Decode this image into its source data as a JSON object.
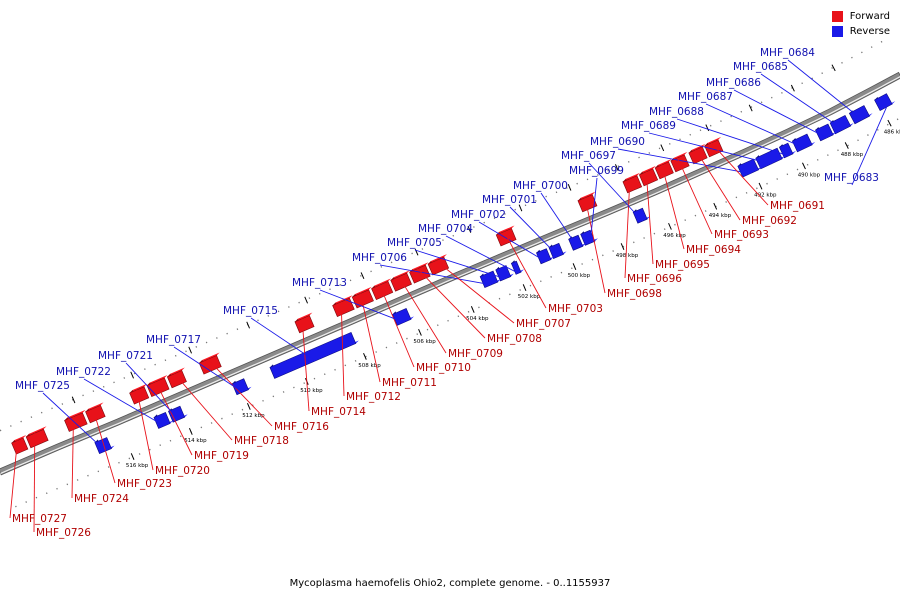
{
  "caption": "Mycoplasma haemofelis Ohio2, complete genome. - 0..1155937",
  "legend": {
    "forward_label": "Forward",
    "reverse_label": "Reverse",
    "forward_color": "#e8121a",
    "reverse_color": "#1a1ae8"
  },
  "ruler": {
    "unit": "kbp",
    "ticks": [
      {
        "pos": 486,
        "label": "486 kbp"
      },
      {
        "pos": 488,
        "label": "488 kbp"
      },
      {
        "pos": 490,
        "label": "490 kbp"
      },
      {
        "pos": 492,
        "label": "492 kbp"
      },
      {
        "pos": 494,
        "label": "494 kbp"
      },
      {
        "pos": 496,
        "label": "496 kbp"
      },
      {
        "pos": 498,
        "label": "498 kbp"
      },
      {
        "pos": 500,
        "label": "500 kbp"
      },
      {
        "pos": 502,
        "label": "502 kbp"
      },
      {
        "pos": 504,
        "label": "504 kbp"
      },
      {
        "pos": 506,
        "label": "506 kbp"
      },
      {
        "pos": 508,
        "label": "508 kbp"
      },
      {
        "pos": 510,
        "label": "510 kbp"
      },
      {
        "pos": 512,
        "label": "512 kbp"
      },
      {
        "pos": 514,
        "label": "514 kbp"
      },
      {
        "pos": 516,
        "label": "516 kbp"
      }
    ]
  },
  "genes": [
    {
      "name": "MHF_0683",
      "strand": "reverse",
      "start": 485.3,
      "end": 486.1
    },
    {
      "name": "MHF_0684",
      "strand": "reverse",
      "start": 486.6,
      "end": 487.3
    },
    {
      "name": "MHF_0685",
      "strand": "reverse",
      "start": 487.5,
      "end": 488.2
    },
    {
      "name": "MHF_0686",
      "strand": "reverse",
      "start": 488.3,
      "end": 488.9
    },
    {
      "name": "MHF_0687",
      "strand": "reverse",
      "start": 489.3,
      "end": 490.0
    },
    {
      "name": "MHF_0688",
      "strand": "reverse",
      "start": 490.2,
      "end": 490.6
    },
    {
      "name": "MHF_0689",
      "strand": "reverse",
      "start": 490.7,
      "end": 491.7
    },
    {
      "name": "MHF_0690",
      "strand": "reverse",
      "start": 491.8,
      "end": 492.5
    },
    {
      "name": "MHF_0691",
      "strand": "forward",
      "start": 492.8,
      "end": 493.4
    },
    {
      "name": "MHF_0692",
      "strand": "forward",
      "start": 493.5,
      "end": 494.1
    },
    {
      "name": "MHF_0693",
      "strand": "forward",
      "start": 494.3,
      "end": 494.9
    },
    {
      "name": "MHF_0694",
      "strand": "forward",
      "start": 495.0,
      "end": 495.6
    },
    {
      "name": "MHF_0695",
      "strand": "forward",
      "start": 495.7,
      "end": 496.3
    },
    {
      "name": "MHF_0696",
      "strand": "forward",
      "start": 496.4,
      "end": 497.0
    },
    {
      "name": "MHF_0697",
      "strand": "reverse",
      "start": 496.7,
      "end": 497.1
    },
    {
      "name": "MHF_0698",
      "strand": "forward",
      "start": 498.3,
      "end": 498.9
    },
    {
      "name": "MHF_0699",
      "strand": "reverse",
      "start": 498.9,
      "end": 499.3
    },
    {
      "name": "MHF_0700",
      "strand": "reverse",
      "start": 499.4,
      "end": 499.8
    },
    {
      "name": "MHF_0701",
      "strand": "reverse",
      "start": 500.2,
      "end": 500.6
    },
    {
      "name": "MHF_0702",
      "strand": "reverse",
      "start": 500.7,
      "end": 501.1
    },
    {
      "name": "MHF_0703",
      "strand": "forward",
      "start": 501.6,
      "end": 502.2
    },
    {
      "name": "MHF_0704",
      "strand": "reverse",
      "start": 501.9,
      "end": 502.1
    },
    {
      "name": "MHF_0705",
      "strand": "reverse",
      "start": 502.3,
      "end": 502.7
    },
    {
      "name": "MHF_0706",
      "strand": "reverse",
      "start": 502.8,
      "end": 503.3
    },
    {
      "name": "MHF_0707",
      "strand": "forward",
      "start": 504.2,
      "end": 504.8
    },
    {
      "name": "MHF_0708",
      "strand": "forward",
      "start": 504.9,
      "end": 505.5
    },
    {
      "name": "MHF_0709",
      "strand": "forward",
      "start": 505.6,
      "end": 506.2
    },
    {
      "name": "MHF_0710",
      "strand": "forward",
      "start": 506.3,
      "end": 506.9
    },
    {
      "name": "MHF_0711",
      "strand": "forward",
      "start": 507.0,
      "end": 507.6
    },
    {
      "name": "MHF_0712",
      "strand": "forward",
      "start": 507.7,
      "end": 508.3
    },
    {
      "name": "MHF_0713",
      "strand": "reverse",
      "start": 506.1,
      "end": 506.6
    },
    {
      "name": "MHF_0714",
      "strand": "forward",
      "start": 509.1,
      "end": 509.6
    },
    {
      "name": "MHF_0715",
      "strand": "reverse",
      "start": 508.1,
      "end": 510.9
    },
    {
      "name": "MHF_0716",
      "strand": "forward",
      "start": 512.3,
      "end": 512.9
    },
    {
      "name": "MHF_0717",
      "strand": "reverse",
      "start": 511.8,
      "end": 512.2
    },
    {
      "name": "MHF_0718",
      "strand": "forward",
      "start": 513.5,
      "end": 514.0
    },
    {
      "name": "MHF_0719",
      "strand": "forward",
      "start": 514.1,
      "end": 514.7
    },
    {
      "name": "MHF_0720",
      "strand": "forward",
      "start": 514.8,
      "end": 515.3
    },
    {
      "name": "MHF_0721",
      "strand": "reverse",
      "start": 514.0,
      "end": 514.4
    },
    {
      "name": "MHF_0722",
      "strand": "reverse",
      "start": 514.5,
      "end": 514.9
    },
    {
      "name": "MHF_0723",
      "strand": "forward",
      "start": 516.3,
      "end": 516.8
    },
    {
      "name": "MHF_0724",
      "strand": "forward",
      "start": 516.9,
      "end": 517.5
    },
    {
      "name": "MHF_0725",
      "strand": "reverse",
      "start": 516.5,
      "end": 516.9
    },
    {
      "name": "MHF_0726",
      "strand": "forward",
      "start": 518.2,
      "end": 518.8
    },
    {
      "name": "MHF_0727",
      "strand": "forward",
      "start": 518.9,
      "end": 519.3
    }
  ]
}
